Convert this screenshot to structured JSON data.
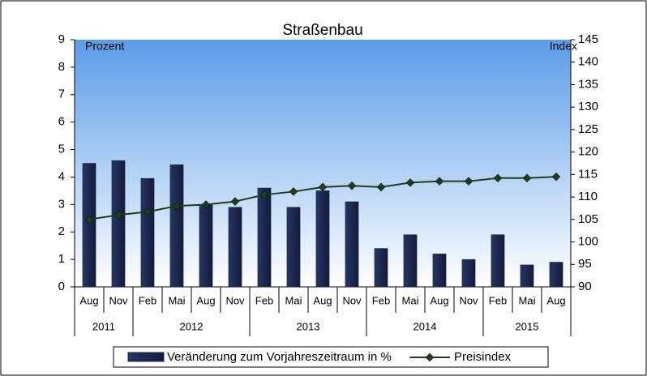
{
  "chart_data": {
    "type": "bar-line",
    "title": "Straßenbau",
    "y_label": "Prozent",
    "y2_label": "Index",
    "categories": [
      "Aug",
      "Nov",
      "Feb",
      "Mai",
      "Aug",
      "Nov",
      "Feb",
      "Mai",
      "Aug",
      "Nov",
      "Feb",
      "Mai",
      "Aug",
      "Nov",
      "Feb",
      "Mai",
      "Aug"
    ],
    "category_groups": [
      {
        "label": "2011",
        "size": 2
      },
      {
        "label": "2012",
        "size": 4
      },
      {
        "label": "2013",
        "size": 4
      },
      {
        "label": "2014",
        "size": 4
      },
      {
        "label": "2015",
        "size": 3
      }
    ],
    "series": [
      {
        "name": "Veränderung zum Vorjahreszeitraum in %",
        "type": "bar",
        "color": "#1c2850",
        "values": [
          4.5,
          4.6,
          3.95,
          4.45,
          3.0,
          2.9,
          3.6,
          2.9,
          3.5,
          3.1,
          1.4,
          1.9,
          1.2,
          1.0,
          1.9,
          0.8,
          0.9
        ]
      },
      {
        "name": "Preisindex",
        "type": "line",
        "axis": "y2",
        "color": "#1e3d1e",
        "values": [
          105,
          106,
          106.7,
          108,
          108.3,
          109,
          110.5,
          111.2,
          112.2,
          112.5,
          112.2,
          113.2,
          113.5,
          113.5,
          114.2,
          114.2,
          114.5
        ]
      }
    ],
    "ylim": [
      0,
      9
    ],
    "yticks": [
      0,
      1,
      2,
      3,
      4,
      5,
      6,
      7,
      8,
      9
    ],
    "y2lim": [
      90,
      145
    ],
    "y2ticks": [
      90,
      95,
      100,
      105,
      110,
      115,
      120,
      125,
      130,
      135,
      140,
      145
    ],
    "legend": "bottom"
  }
}
